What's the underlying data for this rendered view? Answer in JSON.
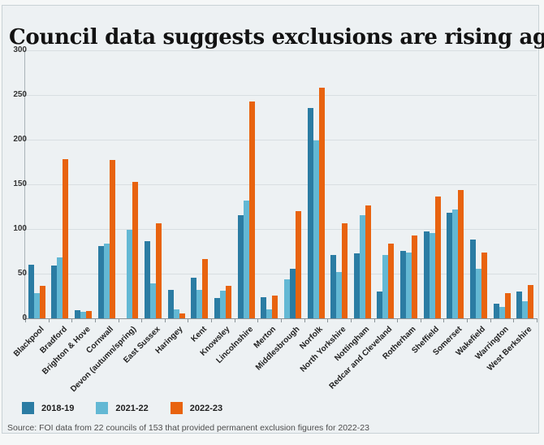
{
  "page": {
    "title": "Council data suggests exclusions are rising again",
    "source": "Source: FOI data from 22 councils of 153 that provided permanent exclusion figures for 2022-23"
  },
  "chart_data": {
    "type": "bar",
    "title": "Council data suggests exclusions are rising again",
    "xlabel": "",
    "ylabel": "",
    "ylim": [
      0,
      300
    ],
    "yticks": [
      0,
      50,
      100,
      150,
      200,
      250,
      300
    ],
    "grid": "horizontal",
    "legend_position": "bottom-left",
    "series_names": [
      "2018-19",
      "2021-22",
      "2022-23"
    ],
    "series_colors": [
      "#2b7ca3",
      "#63b8d4",
      "#e8630f"
    ],
    "categories": [
      {
        "label": "Blackpool",
        "values": [
          60,
          28,
          36
        ]
      },
      {
        "label": "Bradford",
        "values": [
          59,
          68,
          178
        ]
      },
      {
        "label": "Brighton & Hove",
        "values": [
          9,
          7,
          8
        ]
      },
      {
        "label": "Cornwall",
        "values": [
          81,
          84,
          177
        ]
      },
      {
        "label": "Devon (autumn/spring)",
        "values": [
          null,
          99,
          153
        ]
      },
      {
        "label": "East Sussex",
        "values": [
          86,
          39,
          106
        ]
      },
      {
        "label": "Haringey",
        "values": [
          32,
          10,
          5
        ]
      },
      {
        "label": "Kent",
        "values": [
          45,
          32,
          66
        ]
      },
      {
        "label": "Knowsley",
        "values": [
          23,
          31,
          36
        ]
      },
      {
        "label": "Lincolnshire",
        "values": [
          115,
          132,
          243
        ]
      },
      {
        "label": "Merton",
        "values": [
          24,
          10,
          25
        ]
      },
      {
        "label": "Middlesbrough",
        "values": [
          55,
          44,
          120
        ],
        "order": [
          1,
          0,
          2
        ]
      },
      {
        "label": "Norfolk",
        "values": [
          235,
          199,
          258
        ]
      },
      {
        "label": "North Yorkshire",
        "values": [
          71,
          52,
          106
        ]
      },
      {
        "label": "Nottingham",
        "values": [
          73,
          115,
          126
        ]
      },
      {
        "label": "Redcar and Cleveland",
        "values": [
          30,
          71,
          84
        ]
      },
      {
        "label": "Rotherham",
        "values": [
          75,
          74,
          93
        ]
      },
      {
        "label": "Sheffield",
        "values": [
          97,
          95,
          136
        ]
      },
      {
        "label": "Somerset",
        "values": [
          118,
          122,
          144
        ]
      },
      {
        "label": "Wakefield",
        "values": [
          88,
          55,
          74
        ]
      },
      {
        "label": "Warrington",
        "values": [
          16,
          13,
          28
        ]
      },
      {
        "label": "West Berkshire",
        "values": [
          30,
          19,
          37
        ]
      }
    ]
  }
}
